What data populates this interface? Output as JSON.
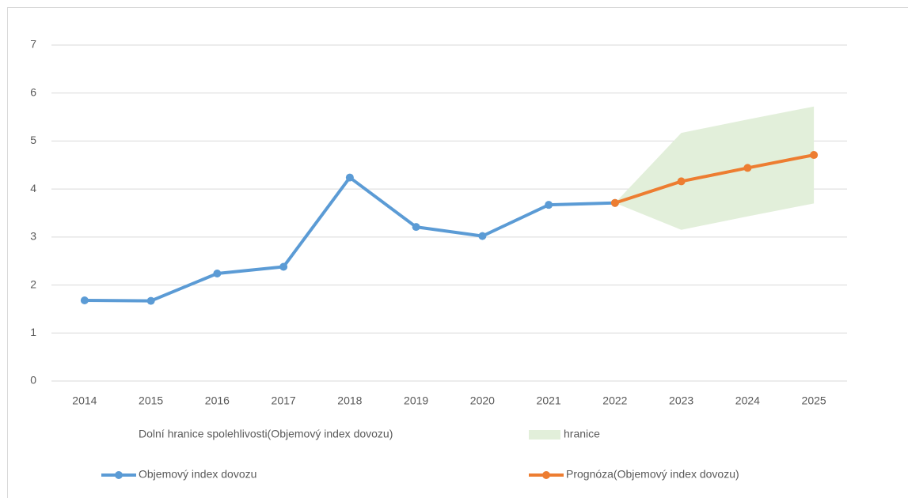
{
  "chart_data": {
    "type": "line",
    "categories": [
      "2014",
      "2015",
      "2016",
      "2017",
      "2018",
      "2019",
      "2020",
      "2021",
      "2022",
      "2023",
      "2024",
      "2025"
    ],
    "series": [
      {
        "name": "Dolní hranice spolehlivosti(Objemový index dovozu)",
        "area": true,
        "values": [
          null,
          null,
          null,
          null,
          null,
          null,
          null,
          null,
          3.71,
          3.15,
          3.43,
          3.7
        ]
      },
      {
        "name": "hranice",
        "area": true,
        "stacked": true,
        "color": "#e2efda",
        "values": [
          null,
          null,
          null,
          null,
          null,
          null,
          null,
          null,
          0,
          2.02,
          2.02,
          2.02
        ]
      },
      {
        "name": "Objemový index dovozu",
        "color": "#5b9bd5",
        "values": [
          1.68,
          1.67,
          2.24,
          2.38,
          4.24,
          3.21,
          3.02,
          3.67,
          3.71,
          null,
          null,
          null
        ]
      },
      {
        "name": "Prognóza(Objemový index dovozu)",
        "color": "#ed7d31",
        "values": [
          null,
          null,
          null,
          null,
          null,
          null,
          null,
          null,
          3.71,
          4.16,
          4.44,
          4.71
        ]
      }
    ],
    "ylim": [
      0,
      7
    ],
    "yticks": [
      0,
      1,
      2,
      3,
      4,
      5,
      6,
      7
    ],
    "grid": true
  }
}
